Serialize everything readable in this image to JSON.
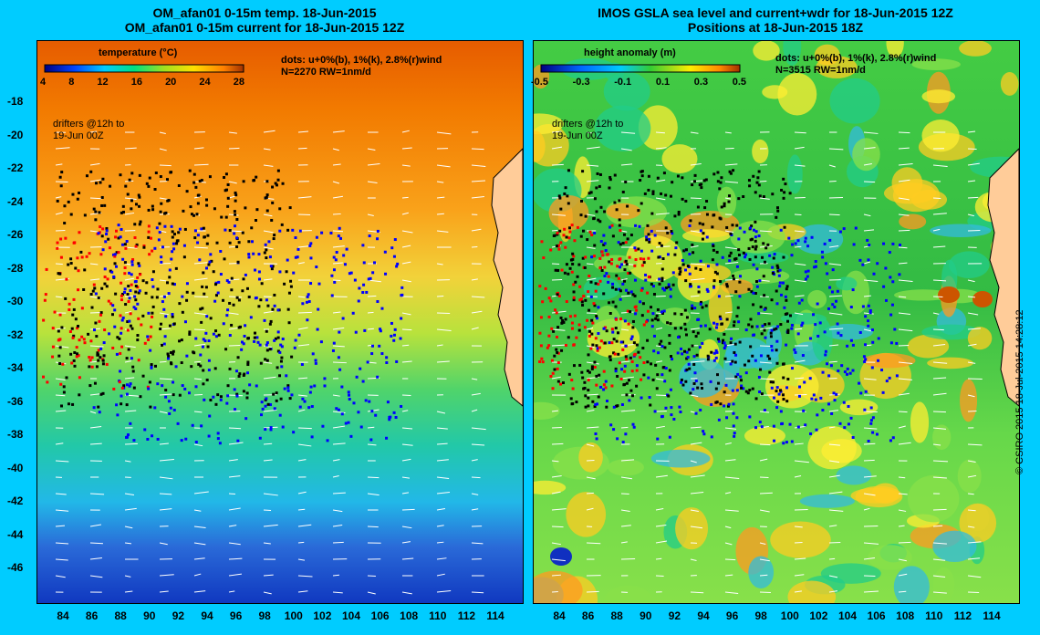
{
  "left_panel": {
    "title_line1": "OM_afan01 0-15m temp. 18-Jun-2015",
    "title_line2": "OM_afan01 0-15m current for 18-Jun-2015 12Z",
    "colorbar_title": "temperature (°C)",
    "colorbar_ticks": [
      "4",
      "8",
      "12",
      "16",
      "20",
      "24",
      "28"
    ],
    "dots_label": "dots: u+0%(b), 1%(k), 2.8%(r)wind",
    "count_label": "N=2270 RW=1nm/d",
    "drifters_label_1": "drifters @12h to",
    "drifters_label_2": "19-Jun 00Z"
  },
  "right_panel": {
    "title_line1": "IMOS GSLA sea level and current+wdr for 18-Jun-2015 12Z",
    "title_line2": "Positions at 18-Jun-2015 18Z",
    "colorbar_title": "height anomaly (m)",
    "colorbar_ticks": [
      "-0.5",
      "-0.3",
      "-0.1",
      "0.1",
      "0.3",
      "0.5"
    ],
    "dots_label": "dots: u+0%(b), 1%(k), 2.8%(r)wind",
    "count_label": "N=3515 RW=1nm/d",
    "drifters_label_1": "drifters @12h to",
    "drifters_label_2": "19-Jun 00Z"
  },
  "y_ticks": [
    "-18",
    "-20",
    "-22",
    "-24",
    "-26",
    "-28",
    "-30",
    "-32",
    "-34",
    "-36",
    "-38",
    "-40",
    "-42",
    "-44",
    "-46"
  ],
  "x_ticks": [
    "84",
    "86",
    "88",
    "90",
    "92",
    "94",
    "96",
    "98",
    "100",
    "102",
    "104",
    "106",
    "108",
    "110",
    "112",
    "114"
  ],
  "copyright": "© CSIRO 2015  18-Jul-2015 14:28:12",
  "colors": {
    "background": "#00ccff",
    "land": "#ffcc99",
    "dot_blue": "#0000ff",
    "dot_black": "#000000",
    "dot_red": "#ff0000"
  }
}
